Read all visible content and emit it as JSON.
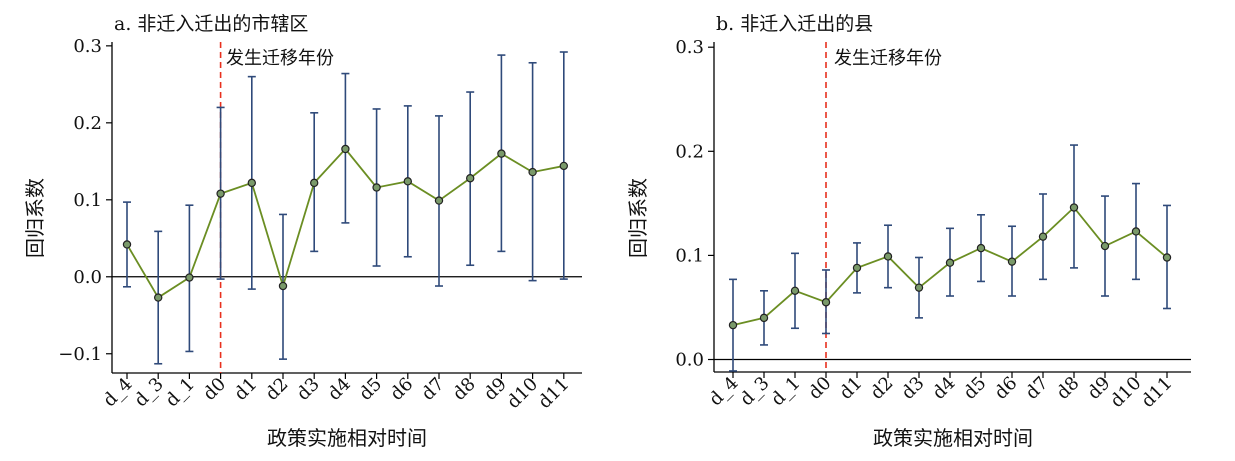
{
  "colors": {
    "line": "#6b8e23",
    "errorbar": "#2f4a7a",
    "marker_fill": "#7a9a6a",
    "marker_stroke": "#222222",
    "event_line": "#e8301e",
    "zero_line": "#000000"
  },
  "chart_data": [
    {
      "type": "line",
      "title": "a. 非迁入迁出的市辖区",
      "xlabel": "政策实施相对时间",
      "ylabel": "回归系数",
      "ylim": [
        -0.125,
        0.305
      ],
      "yticks": [
        -0.1,
        0.0,
        0.1,
        0.2,
        0.3
      ],
      "ytick_labels": [
        "−0.1",
        "0.0",
        "0.1",
        "0.2",
        "0.3"
      ],
      "categories": [
        "d_4",
        "d_3",
        "d_1",
        "d0",
        "d1",
        "d2",
        "d3",
        "d4",
        "d5",
        "d6",
        "d7",
        "d8",
        "d9",
        "d10",
        "d11"
      ],
      "values": [
        0.042,
        -0.027,
        -0.001,
        0.108,
        0.122,
        -0.012,
        0.122,
        0.166,
        0.116,
        0.124,
        0.099,
        0.128,
        0.16,
        0.136,
        0.144
      ],
      "ci_lower": [
        -0.013,
        -0.113,
        -0.097,
        -0.003,
        -0.016,
        -0.107,
        0.033,
        0.07,
        0.014,
        0.026,
        -0.012,
        0.015,
        0.033,
        -0.005,
        -0.003
      ],
      "ci_upper": [
        0.097,
        0.059,
        0.093,
        0.22,
        0.26,
        0.081,
        0.213,
        0.264,
        0.218,
        0.222,
        0.209,
        0.24,
        0.288,
        0.278,
        0.292
      ],
      "event_category": "d0",
      "event_label": "发生迁移年份",
      "zero_line": true,
      "grid": false,
      "legend": "none"
    },
    {
      "type": "line",
      "title": "b. 非迁入迁出的县",
      "xlabel": "政策实施相对时间",
      "ylabel": "回归系数",
      "ylim": [
        -0.012,
        0.305
      ],
      "yticks": [
        0.0,
        0.1,
        0.2,
        0.3
      ],
      "ytick_labels": [
        "0.0",
        "0.1",
        "0.2",
        "0.3"
      ],
      "categories": [
        "d_4",
        "d_3",
        "d_1",
        "d0",
        "d1",
        "d2",
        "d3",
        "d4",
        "d5",
        "d6",
        "d7",
        "d8",
        "d9",
        "d10",
        "d11"
      ],
      "values": [
        0.033,
        0.04,
        0.066,
        0.055,
        0.088,
        0.099,
        0.069,
        0.093,
        0.107,
        0.094,
        0.118,
        0.146,
        0.109,
        0.123,
        0.098
      ],
      "ci_lower": [
        -0.011,
        0.014,
        0.03,
        0.025,
        0.064,
        0.069,
        0.04,
        0.061,
        0.075,
        0.061,
        0.077,
        0.088,
        0.061,
        0.077,
        0.049
      ],
      "ci_upper": [
        0.077,
        0.066,
        0.102,
        0.086,
        0.112,
        0.129,
        0.098,
        0.126,
        0.139,
        0.128,
        0.159,
        0.206,
        0.157,
        0.169,
        0.148
      ],
      "event_category": "d0",
      "event_label": "发生迁移年份",
      "zero_line": true,
      "grid": false,
      "legend": "none"
    }
  ]
}
